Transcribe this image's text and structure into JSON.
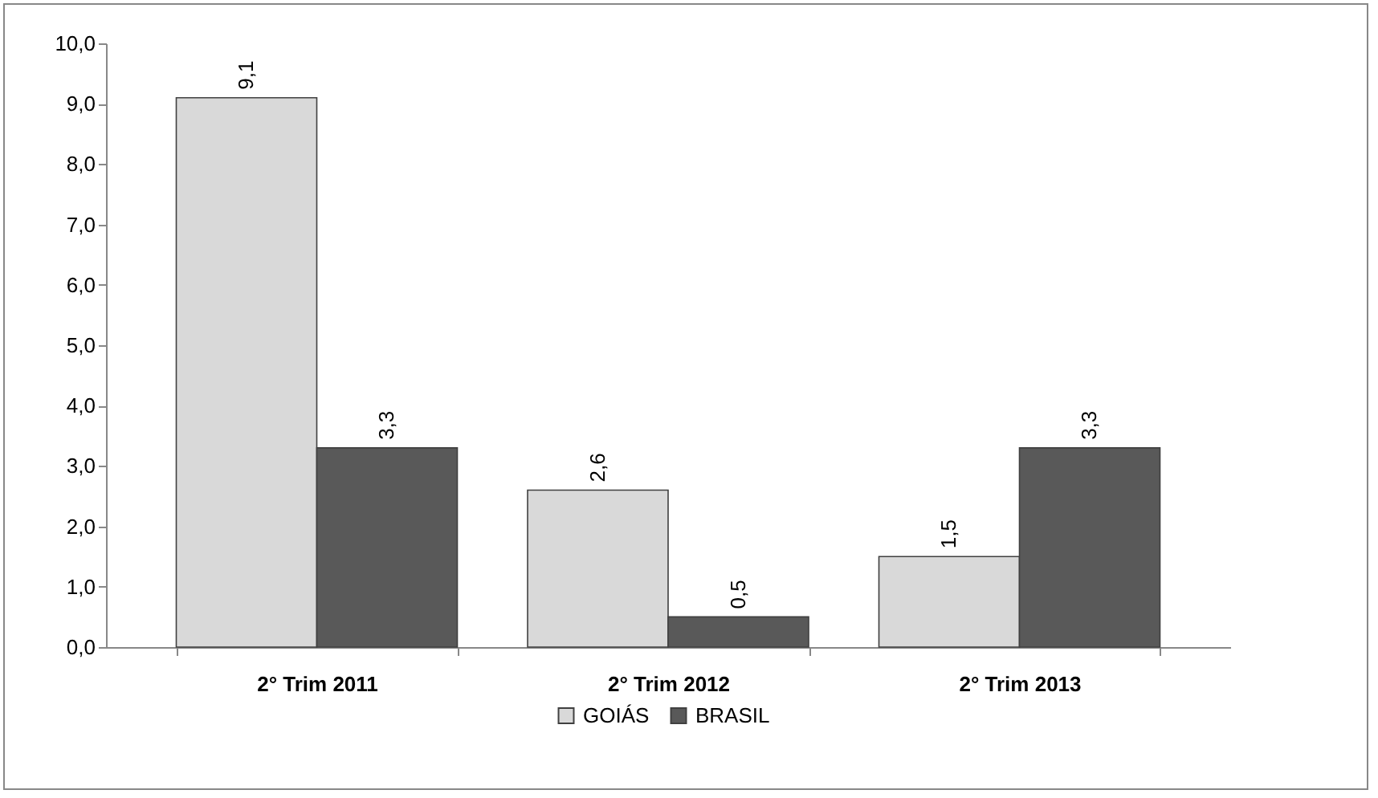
{
  "chart_data": {
    "type": "bar",
    "categories": [
      "2° Trim 2011",
      "2° Trim 2012",
      "2° Trim 2013"
    ],
    "series": [
      {
        "name": "GOIÁS",
        "color": "#d9d9d9",
        "values": [
          9.1,
          2.6,
          1.5
        ],
        "value_labels": [
          "9,1",
          "2,6",
          "1,5"
        ]
      },
      {
        "name": "BRASIL",
        "color": "#595959",
        "values": [
          3.3,
          0.5,
          3.3
        ],
        "value_labels": [
          "3,3",
          "0,5",
          "3,3"
        ]
      }
    ],
    "ylim": [
      0,
      10
    ],
    "yticks": [
      {
        "value": 0,
        "label": "0,0"
      },
      {
        "value": 1,
        "label": "1,0"
      },
      {
        "value": 2,
        "label": "2,0"
      },
      {
        "value": 3,
        "label": "3,0"
      },
      {
        "value": 4,
        "label": "4,0"
      },
      {
        "value": 5,
        "label": "5,0"
      },
      {
        "value": 6,
        "label": "6,0"
      },
      {
        "value": 7,
        "label": "7,0"
      },
      {
        "value": 8,
        "label": "8,0"
      },
      {
        "value": 9,
        "label": "9,0"
      },
      {
        "value": 10,
        "label": "10,0"
      }
    ],
    "grid": false,
    "legend": "bottom"
  }
}
